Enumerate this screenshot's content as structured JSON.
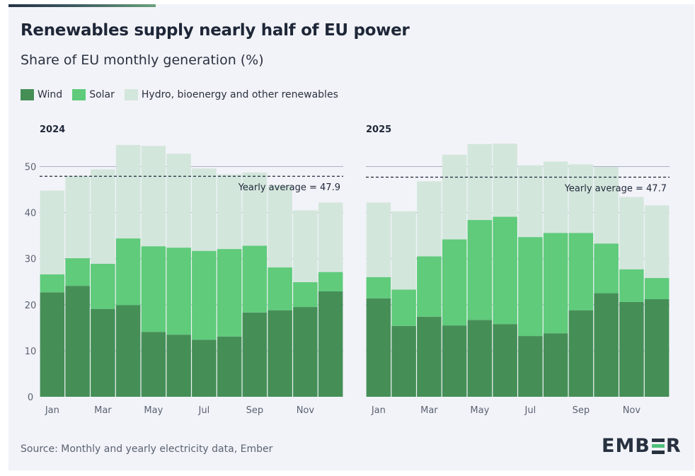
{
  "title": "Renewables supply nearly half of EU power",
  "subtitle": "Share of EU monthly generation (%)",
  "legend": [
    {
      "label": "Wind",
      "color": "#458f57"
    },
    {
      "label": "Solar",
      "color": "#5fcb7b"
    },
    {
      "label": "Hydro, bioenergy and other renewables",
      "color": "#d3e6dc"
    }
  ],
  "source": "Source: Monthly and yearly electricity data, Ember",
  "logo": {
    "pre": "EMB",
    "post": "R"
  },
  "chart_data": [
    {
      "type": "bar",
      "stacked": true,
      "title": "2024",
      "categories": [
        "Jan",
        "Feb",
        "Mar",
        "Apr",
        "May",
        "Jun",
        "Jul",
        "Aug",
        "Sep",
        "Oct",
        "Nov",
        "Dec"
      ],
      "tick_labels": [
        "Jan",
        "",
        "Mar",
        "",
        "May",
        "",
        "Jul",
        "",
        "Sep",
        "",
        "Nov",
        ""
      ],
      "series": [
        {
          "name": "Wind",
          "values": [
            22.7,
            24.1,
            19.1,
            19.9,
            14.1,
            13.5,
            12.4,
            13.1,
            18.3,
            18.8,
            19.5,
            22.9
          ]
        },
        {
          "name": "Solar",
          "values": [
            3.9,
            6.0,
            9.8,
            14.5,
            18.6,
            18.9,
            19.3,
            19.0,
            14.5,
            9.3,
            5.4,
            4.2
          ]
        },
        {
          "name": "Hydro, bioenergy and other renewables",
          "values": [
            18.2,
            17.9,
            20.5,
            20.3,
            21.8,
            20.4,
            17.9,
            16.2,
            15.9,
            17.8,
            15.6,
            15.1
          ]
        }
      ],
      "ylim": [
        0,
        55
      ],
      "yticks": [
        0,
        10,
        20,
        30,
        40,
        50
      ],
      "reference_line": {
        "value": 47.9,
        "label": "Yearly average = 47.9"
      }
    },
    {
      "type": "bar",
      "stacked": true,
      "title": "2025",
      "categories": [
        "Jan",
        "Feb",
        "Mar",
        "Apr",
        "May",
        "Jun",
        "Jul",
        "Aug",
        "Sep",
        "Oct",
        "Nov",
        "Dec"
      ],
      "tick_labels": [
        "Jan",
        "",
        "Mar",
        "",
        "May",
        "",
        "Jul",
        "",
        "Sep",
        "",
        "Nov",
        ""
      ],
      "series": [
        {
          "name": "Wind",
          "values": [
            21.4,
            15.4,
            17.4,
            15.5,
            16.7,
            15.8,
            13.2,
            13.8,
            18.8,
            22.5,
            20.6,
            21.2
          ]
        },
        {
          "name": "Solar",
          "values": [
            4.6,
            7.9,
            13.1,
            18.7,
            21.7,
            23.3,
            21.5,
            21.8,
            16.8,
            10.8,
            7.1,
            4.6
          ]
        },
        {
          "name": "Hydro, bioenergy and other renewables",
          "values": [
            16.2,
            17.0,
            16.3,
            18.4,
            16.5,
            15.9,
            15.6,
            15.5,
            14.9,
            16.6,
            15.7,
            15.8
          ]
        }
      ],
      "ylim": [
        0,
        55
      ],
      "yticks": [
        0,
        10,
        20,
        30,
        40,
        50
      ],
      "reference_line": {
        "value": 47.7,
        "label": "Yearly average = 47.7"
      }
    }
  ]
}
